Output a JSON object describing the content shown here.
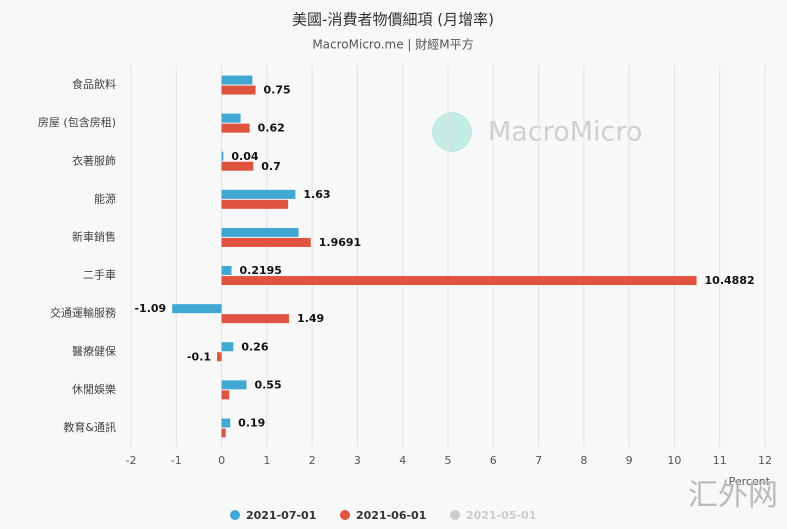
{
  "chart_data": {
    "type": "hbar",
    "title": "美國-消費者物價細項 (月增率)",
    "subtitle": "MacroMicro.me | 財經M平方",
    "x_label": "Percent",
    "watermark": "MacroMicro",
    "corner_mark": "汇外网",
    "categories": [
      "食品飲料",
      "房屋 (包含房租)",
      "衣著服飾",
      "能源",
      "新車銷售",
      "二手車",
      "交通運輸服務",
      "醫療健保",
      "休閒娛樂",
      "教育&通訊"
    ],
    "series": [
      {
        "name": "2021-07-01",
        "color": "#41a8d4",
        "visible": true,
        "values": [
          0.68,
          0.42,
          0.04,
          1.63,
          1.7,
          0.2195,
          -1.09,
          0.26,
          0.55,
          0.19
        ],
        "value_labels": [
          null,
          null,
          "0.04",
          "1.63",
          null,
          "0.2195",
          "-1.09",
          "0.26",
          "0.55",
          "0.19"
        ]
      },
      {
        "name": "2021-06-01",
        "color": "#e0533f",
        "visible": true,
        "values": [
          0.75,
          0.62,
          0.7,
          1.47,
          1.9691,
          10.4882,
          1.49,
          -0.1,
          0.17,
          0.09
        ],
        "value_labels": [
          "0.75",
          "0.62",
          "0.7",
          null,
          "1.9691",
          "10.4882",
          "1.49",
          "-0.1",
          null,
          null
        ]
      },
      {
        "name": "2021-05-01",
        "color": "#cccccc",
        "visible": false,
        "values": [
          null,
          null,
          null,
          null,
          null,
          null,
          null,
          null,
          null,
          null
        ]
      }
    ],
    "xlim": [
      -2,
      12
    ],
    "xticks": [
      -2,
      -1,
      0,
      1,
      2,
      3,
      4,
      5,
      6,
      7,
      8,
      9,
      10,
      11,
      12
    ],
    "grid": true,
    "legend": "bottom"
  }
}
